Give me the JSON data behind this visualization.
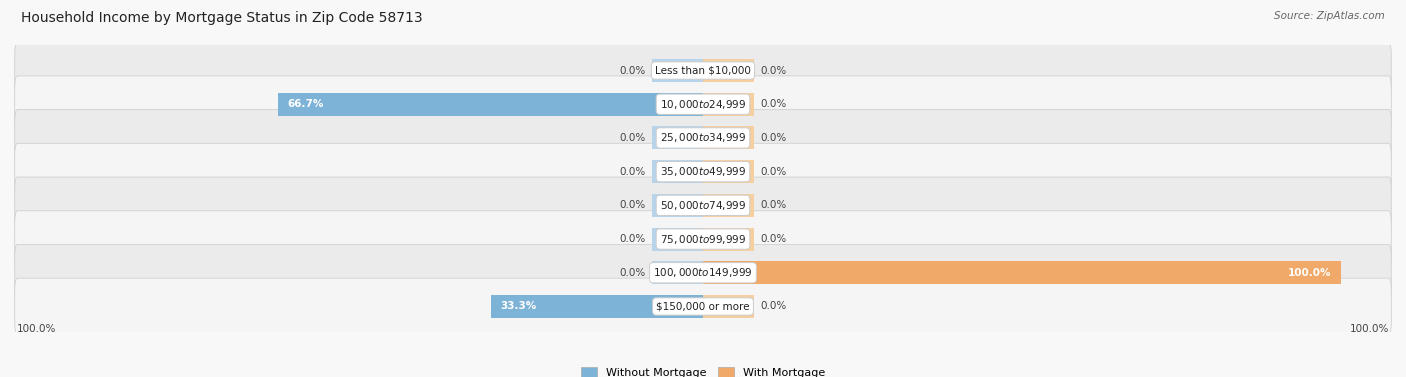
{
  "title": "Household Income by Mortgage Status in Zip Code 58713",
  "source": "Source: ZipAtlas.com",
  "categories": [
    "Less than $10,000",
    "$10,000 to $24,999",
    "$25,000 to $34,999",
    "$35,000 to $49,999",
    "$50,000 to $74,999",
    "$75,000 to $99,999",
    "$100,000 to $149,999",
    "$150,000 or more"
  ],
  "without_mortgage": [
    0.0,
    66.7,
    0.0,
    0.0,
    0.0,
    0.0,
    0.0,
    33.3
  ],
  "with_mortgage": [
    0.0,
    0.0,
    0.0,
    0.0,
    0.0,
    0.0,
    100.0,
    0.0
  ],
  "color_without": "#7eb3d8",
  "color_with": "#f0a968",
  "color_without_light": "#b8d4eb",
  "color_with_light": "#f5cfa0",
  "stub_size": 8.0,
  "max_val": 100.0,
  "left_label": "100.0%",
  "right_label": "100.0%",
  "legend_without": "Without Mortgage",
  "legend_with": "With Mortgage",
  "row_bg_even": "#ebebeb",
  "row_bg_odd": "#f5f5f5",
  "row_border": "#d0d0d0"
}
